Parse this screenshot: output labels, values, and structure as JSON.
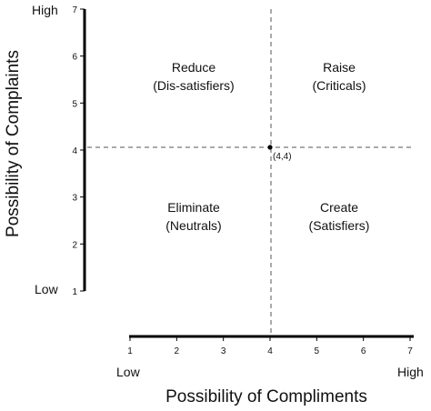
{
  "x_axis": {
    "title": "Possibility of Compliments",
    "low_label": "Low",
    "high_label": "High",
    "ticks": [
      "1",
      "2",
      "3",
      "4",
      "5",
      "6",
      "7"
    ]
  },
  "y_axis": {
    "title": "Possibility of Complaints",
    "low_label": "Low",
    "high_label": "High",
    "ticks": [
      "1",
      "2",
      "3",
      "4",
      "5",
      "6",
      "7"
    ]
  },
  "quadrants": {
    "top_left": {
      "line1": "Reduce",
      "line2": "(Dis-satisfiers)"
    },
    "top_right": {
      "line1": "Raise",
      "line2": "(Criticals)"
    },
    "bottom_left": {
      "line1": "Eliminate",
      "line2": "(Neutrals)"
    },
    "bottom_right": {
      "line1": "Create",
      "line2": "(Satisfiers)"
    }
  },
  "center_point": {
    "x": 4,
    "y": 4,
    "label": "(4,4)"
  }
}
